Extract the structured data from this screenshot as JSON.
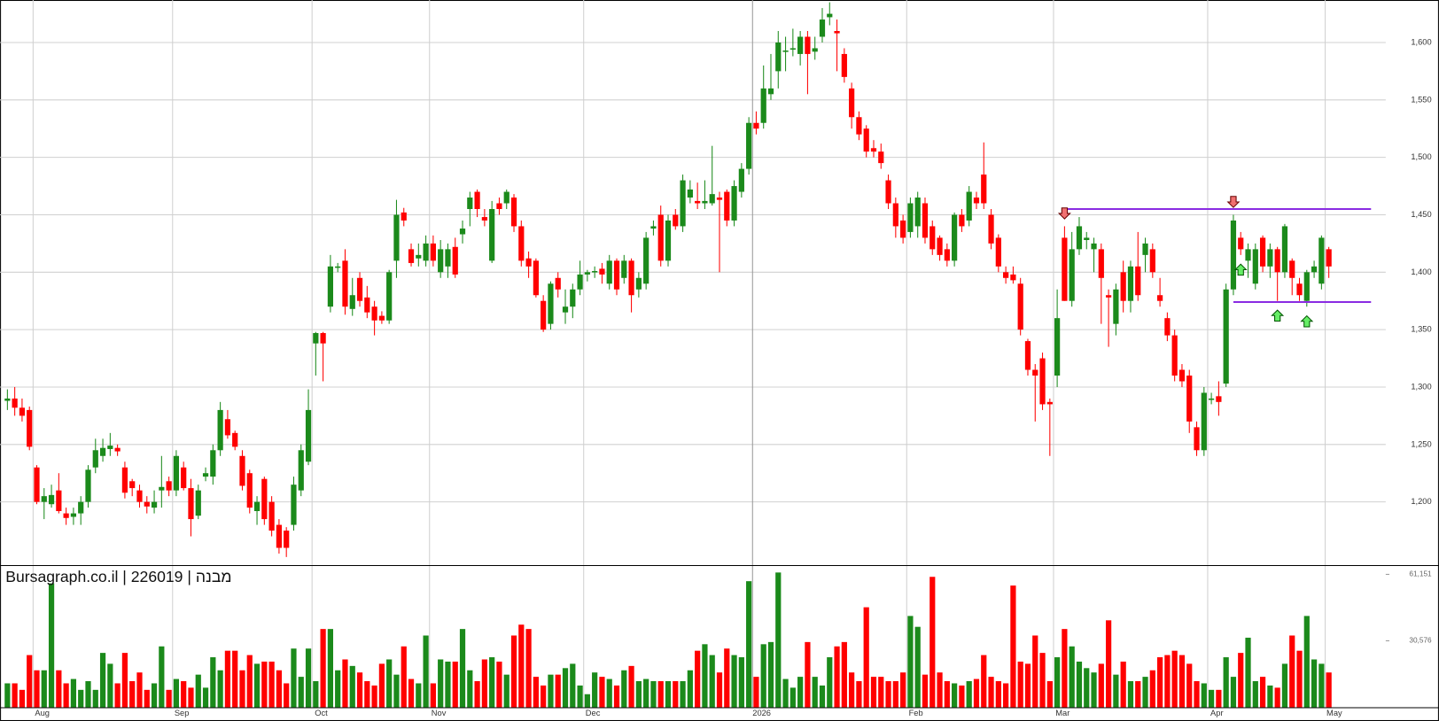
{
  "chart_data": {
    "type": "candlestick",
    "watermark": "Bursagraph.co.il | 226019 | מבנה",
    "up_color": "#1b8a1b",
    "down_color": "#ff0000",
    "level_color": "#8a2be2",
    "up_arrow_color": "#66ee66",
    "down_arrow_color": "#f07070",
    "grid": true,
    "ylim": [
      1145,
      1637
    ],
    "yticks": [
      {
        "value": 1200,
        "label": "1,200"
      },
      {
        "value": 1250,
        "label": "1,250"
      },
      {
        "value": 1300,
        "label": "1,300"
      },
      {
        "value": 1350,
        "label": "1,350"
      },
      {
        "value": 1400,
        "label": "1,400"
      },
      {
        "value": 1450,
        "label": "1,450"
      },
      {
        "value": 1500,
        "label": "1,500"
      },
      {
        "value": 1550,
        "label": "1,550"
      },
      {
        "value": 1600,
        "label": "1,600"
      }
    ],
    "y2lim": [
      0,
      65000
    ],
    "y2ticks": [
      {
        "value": 30576,
        "label": "30,576"
      },
      {
        "value": 61151,
        "label": "61,151"
      }
    ],
    "categories": [
      null,
      null,
      null,
      null,
      "Aug",
      null,
      null,
      null,
      null,
      null,
      null,
      null,
      null,
      null,
      null,
      null,
      null,
      null,
      null,
      null,
      null,
      null,
      null,
      "Sep",
      null,
      null,
      null,
      null,
      null,
      null,
      null,
      null,
      null,
      null,
      null,
      null,
      null,
      null,
      null,
      null,
      null,
      null,
      "Oct",
      null,
      null,
      null,
      null,
      null,
      null,
      null,
      null,
      null,
      null,
      null,
      null,
      null,
      null,
      null,
      "Nov",
      null,
      null,
      null,
      null,
      null,
      null,
      null,
      null,
      null,
      null,
      null,
      null,
      null,
      null,
      null,
      null,
      null,
      null,
      null,
      null,
      "Dec",
      null,
      null,
      null,
      null,
      null,
      null,
      null,
      null,
      null,
      null,
      null,
      null,
      null,
      null,
      null,
      null,
      null,
      null,
      null,
      null,
      null,
      null,
      "2026",
      null,
      null,
      null,
      null,
      null,
      null,
      null,
      null,
      null,
      null,
      null,
      null,
      null,
      null,
      null,
      null,
      null,
      null,
      null,
      null,
      "Feb",
      null,
      null,
      null,
      null,
      null,
      null,
      null,
      null,
      null,
      null,
      null,
      null,
      null,
      null,
      null,
      null,
      null,
      null,
      null,
      "Mar",
      null,
      null,
      null,
      null,
      null,
      null,
      null,
      null,
      null,
      null,
      null,
      null,
      null,
      null,
      null,
      null,
      null,
      null,
      null,
      null,
      "Apr",
      null,
      null,
      null,
      null,
      null,
      null,
      null,
      null,
      null,
      null,
      null,
      null,
      null,
      null,
      null,
      "May"
    ],
    "ohlc": [
      [
        1288,
        1298,
        1280,
        1290
      ],
      [
        1290,
        1300,
        1275,
        1282
      ],
      [
        1282,
        1290,
        1270,
        1275
      ],
      [
        1280,
        1283,
        1245,
        1248
      ],
      [
        1230,
        1232,
        1198,
        1200
      ],
      [
        1200,
        1212,
        1185,
        1205
      ],
      [
        1198,
        1215,
        1195,
        1206
      ],
      [
        1210,
        1225,
        1190,
        1192
      ],
      [
        1190,
        1195,
        1180,
        1186
      ],
      [
        1187,
        1195,
        1180,
        1190
      ],
      [
        1190,
        1205,
        1180,
        1200
      ],
      [
        1200,
        1232,
        1195,
        1228
      ],
      [
        1230,
        1255,
        1225,
        1245
      ],
      [
        1240,
        1255,
        1235,
        1247
      ],
      [
        1246,
        1260,
        1240,
        1249
      ],
      [
        1247,
        1250,
        1240,
        1244
      ],
      [
        1230,
        1235,
        1203,
        1208
      ],
      [
        1218,
        1220,
        1205,
        1212
      ],
      [
        1210,
        1215,
        1195,
        1200
      ],
      [
        1200,
        1205,
        1190,
        1196
      ],
      [
        1195,
        1210,
        1190,
        1200
      ],
      [
        1210,
        1240,
        1195,
        1213
      ],
      [
        1218,
        1222,
        1205,
        1210
      ],
      [
        1210,
        1245,
        1205,
        1240
      ],
      [
        1230,
        1235,
        1210,
        1212
      ],
      [
        1212,
        1220,
        1170,
        1185
      ],
      [
        1188,
        1215,
        1185,
        1210
      ],
      [
        1222,
        1230,
        1218,
        1225
      ],
      [
        1222,
        1250,
        1215,
        1245
      ],
      [
        1245,
        1287,
        1240,
        1280
      ],
      [
        1272,
        1280,
        1255,
        1258
      ],
      [
        1260,
        1262,
        1245,
        1248
      ],
      [
        1240,
        1245,
        1210,
        1214
      ],
      [
        1225,
        1228,
        1190,
        1195
      ],
      [
        1192,
        1205,
        1180,
        1200
      ],
      [
        1220,
        1222,
        1180,
        1185
      ],
      [
        1200,
        1205,
        1170,
        1175
      ],
      [
        1180,
        1185,
        1155,
        1160
      ],
      [
        1175,
        1178,
        1152,
        1160
      ],
      [
        1180,
        1222,
        1175,
        1215
      ],
      [
        1210,
        1250,
        1205,
        1245
      ],
      [
        1235,
        1298,
        1232,
        1280
      ],
      [
        1338,
        1348,
        1310,
        1347
      ],
      [
        1347,
        1348,
        1305,
        1338
      ],
      [
        1370,
        1415,
        1365,
        1405
      ],
      [
        1404,
        1408,
        1400,
        1405
      ],
      [
        1410,
        1420,
        1363,
        1370
      ],
      [
        1368,
        1395,
        1362,
        1380
      ],
      [
        1395,
        1400,
        1370,
        1375
      ],
      [
        1378,
        1388,
        1360,
        1365
      ],
      [
        1370,
        1375,
        1345,
        1358
      ],
      [
        1362,
        1366,
        1355,
        1358
      ],
      [
        1358,
        1402,
        1355,
        1400
      ],
      [
        1410,
        1463,
        1395,
        1450
      ],
      [
        1452,
        1456,
        1440,
        1445
      ],
      [
        1420,
        1425,
        1405,
        1408
      ],
      [
        1412,
        1425,
        1405,
        1415
      ],
      [
        1410,
        1432,
        1405,
        1425
      ],
      [
        1425,
        1432,
        1405,
        1410
      ],
      [
        1400,
        1428,
        1395,
        1420
      ],
      [
        1405,
        1425,
        1395,
        1420
      ],
      [
        1422,
        1430,
        1395,
        1398
      ],
      [
        1433,
        1445,
        1425,
        1438
      ],
      [
        1455,
        1470,
        1440,
        1465
      ],
      [
        1470,
        1472,
        1448,
        1455
      ],
      [
        1448,
        1455,
        1440,
        1445
      ],
      [
        1410,
        1462,
        1408,
        1455
      ],
      [
        1460,
        1465,
        1450,
        1455
      ],
      [
        1460,
        1472,
        1455,
        1470
      ],
      [
        1465,
        1468,
        1435,
        1440
      ],
      [
        1440,
        1445,
        1405,
        1410
      ],
      [
        1412,
        1418,
        1395,
        1405
      ],
      [
        1410,
        1412,
        1378,
        1380
      ],
      [
        1375,
        1380,
        1348,
        1350
      ],
      [
        1355,
        1392,
        1350,
        1390
      ],
      [
        1395,
        1400,
        1378,
        1385
      ],
      [
        1365,
        1385,
        1355,
        1370
      ],
      [
        1370,
        1390,
        1360,
        1385
      ],
      [
        1385,
        1410,
        1380,
        1398
      ],
      [
        1398,
        1402,
        1392,
        1400
      ],
      [
        1400,
        1405,
        1395,
        1401
      ],
      [
        1403,
        1408,
        1390,
        1398
      ],
      [
        1390,
        1415,
        1385,
        1410
      ],
      [
        1410,
        1412,
        1380,
        1385
      ],
      [
        1395,
        1415,
        1390,
        1410
      ],
      [
        1410,
        1412,
        1365,
        1380
      ],
      [
        1385,
        1400,
        1378,
        1395
      ],
      [
        1390,
        1435,
        1385,
        1430
      ],
      [
        1438,
        1445,
        1432,
        1440
      ],
      [
        1450,
        1458,
        1405,
        1410
      ],
      [
        1410,
        1450,
        1405,
        1445
      ],
      [
        1450,
        1455,
        1437,
        1440
      ],
      [
        1440,
        1485,
        1435,
        1480
      ],
      [
        1465,
        1480,
        1460,
        1472
      ],
      [
        1462,
        1478,
        1455,
        1460
      ],
      [
        1460,
        1480,
        1455,
        1462
      ],
      [
        1460,
        1510,
        1458,
        1468
      ],
      [
        1465,
        1470,
        1400,
        1463
      ],
      [
        1470,
        1472,
        1440,
        1445
      ],
      [
        1445,
        1480,
        1440,
        1475
      ],
      [
        1470,
        1495,
        1465,
        1490
      ],
      [
        1490,
        1535,
        1485,
        1530
      ],
      [
        1530,
        1540,
        1520,
        1525
      ],
      [
        1530,
        1580,
        1525,
        1560
      ],
      [
        1555,
        1590,
        1550,
        1560
      ],
      [
        1575,
        1610,
        1560,
        1600
      ],
      [
        1592,
        1605,
        1575,
        1593
      ],
      [
        1595,
        1612,
        1588,
        1595
      ],
      [
        1590,
        1610,
        1580,
        1605
      ],
      [
        1605,
        1610,
        1555,
        1590
      ],
      [
        1592,
        1605,
        1585,
        1595
      ],
      [
        1605,
        1630,
        1600,
        1620
      ],
      [
        1622,
        1635,
        1615,
        1625
      ],
      [
        1610,
        1620,
        1575,
        1608
      ],
      [
        1590,
        1595,
        1565,
        1570
      ],
      [
        1560,
        1565,
        1525,
        1535
      ],
      [
        1535,
        1540,
        1515,
        1520
      ],
      [
        1525,
        1528,
        1500,
        1505
      ],
      [
        1508,
        1515,
        1500,
        1505
      ],
      [
        1505,
        1512,
        1490,
        1495
      ],
      [
        1480,
        1485,
        1455,
        1460
      ],
      [
        1460,
        1465,
        1430,
        1440
      ],
      [
        1445,
        1450,
        1425,
        1430
      ],
      [
        1435,
        1465,
        1430,
        1460
      ],
      [
        1440,
        1470,
        1430,
        1465
      ],
      [
        1460,
        1465,
        1425,
        1430
      ],
      [
        1440,
        1445,
        1415,
        1420
      ],
      [
        1430,
        1432,
        1410,
        1415
      ],
      [
        1420,
        1425,
        1405,
        1410
      ],
      [
        1410,
        1452,
        1405,
        1450
      ],
      [
        1450,
        1455,
        1435,
        1440
      ],
      [
        1445,
        1475,
        1440,
        1470
      ],
      [
        1465,
        1470,
        1455,
        1460
      ],
      [
        1485,
        1513,
        1455,
        1460
      ],
      [
        1450,
        1455,
        1420,
        1425
      ],
      [
        1430,
        1433,
        1400,
        1405
      ],
      [
        1400,
        1405,
        1390,
        1395
      ],
      [
        1398,
        1405,
        1390,
        1393
      ],
      [
        1390,
        1395,
        1345,
        1350
      ],
      [
        1340,
        1342,
        1310,
        1315
      ],
      [
        1315,
        1320,
        1270,
        1310
      ],
      [
        1325,
        1330,
        1280,
        1285
      ],
      [
        1287,
        1290,
        1240,
        1285
      ],
      [
        1310,
        1385,
        1300,
        1360
      ],
      [
        1430,
        1440,
        1375,
        1375
      ],
      [
        1375,
        1435,
        1370,
        1420
      ],
      [
        1420,
        1448,
        1415,
        1440
      ],
      [
        1428,
        1435,
        1420,
        1430
      ],
      [
        1420,
        1430,
        1400,
        1425
      ],
      [
        1420,
        1425,
        1355,
        1395
      ],
      [
        1380,
        1385,
        1335,
        1378
      ],
      [
        1355,
        1390,
        1345,
        1385
      ],
      [
        1400,
        1410,
        1365,
        1375
      ],
      [
        1375,
        1410,
        1365,
        1405
      ],
      [
        1405,
        1435,
        1375,
        1380
      ],
      [
        1415,
        1430,
        1400,
        1425
      ],
      [
        1420,
        1425,
        1395,
        1400
      ],
      [
        1380,
        1395,
        1370,
        1375
      ],
      [
        1360,
        1365,
        1340,
        1345
      ],
      [
        1345,
        1350,
        1305,
        1310
      ],
      [
        1315,
        1320,
        1300,
        1305
      ],
      [
        1310,
        1315,
        1260,
        1270
      ],
      [
        1265,
        1270,
        1240,
        1245
      ],
      [
        1245,
        1300,
        1240,
        1295
      ],
      [
        1290,
        1295,
        1285,
        1290
      ],
      [
        1292,
        1305,
        1275,
        1287
      ],
      [
        1303,
        1390,
        1300,
        1385
      ],
      [
        1385,
        1450,
        1380,
        1445
      ],
      [
        1430,
        1435,
        1415,
        1420
      ],
      [
        1410,
        1425,
        1395,
        1420
      ],
      [
        1390,
        1425,
        1385,
        1420
      ],
      [
        1430,
        1432,
        1400,
        1405
      ],
      [
        1405,
        1425,
        1395,
        1420
      ],
      [
        1420,
        1422,
        1375,
        1400
      ],
      [
        1400,
        1442,
        1395,
        1440
      ],
      [
        1410,
        1412,
        1380,
        1395
      ],
      [
        1390,
        1395,
        1375,
        1380
      ],
      [
        1375,
        1402,
        1370,
        1400
      ],
      [
        1400,
        1410,
        1395,
        1405
      ],
      [
        1390,
        1432,
        1385,
        1430
      ],
      [
        1420,
        1422,
        1395,
        1405
      ]
    ],
    "volume": [
      11000,
      11000,
      8000,
      24000,
      17000,
      17000,
      57000,
      17000,
      11000,
      13000,
      8000,
      12000,
      8000,
      25000,
      20000,
      11000,
      25000,
      12000,
      16000,
      8000,
      11000,
      28000,
      8000,
      13000,
      12000,
      9000,
      15000,
      9000,
      23000,
      17000,
      26000,
      26000,
      17000,
      24000,
      20000,
      21000,
      21000,
      17000,
      11000,
      27000,
      14000,
      27000,
      12000,
      36000,
      36000,
      17000,
      22000,
      19000,
      16000,
      12000,
      10000,
      20000,
      22000,
      15000,
      28000,
      13000,
      11000,
      33000,
      11000,
      22000,
      21000,
      21000,
      36000,
      17000,
      12000,
      22000,
      23000,
      21000,
      15000,
      33000,
      38000,
      36000,
      14000,
      10000,
      15000,
      15000,
      18000,
      20000,
      10000,
      6000,
      16000,
      14000,
      13000,
      10000,
      17000,
      19000,
      12000,
      13000,
      12000,
      12000,
      12000,
      12000,
      12000,
      17000,
      26000,
      29000,
      24000,
      16000,
      27000,
      24000,
      23000,
      58000,
      14000,
      29000,
      30000,
      62000,
      13000,
      9000,
      14000,
      30000,
      14000,
      10000,
      23000,
      28000,
      30000,
      16000,
      12000,
      46000,
      14000,
      14000,
      12000,
      12000,
      16000,
      42000,
      37000,
      15000,
      60000,
      16000,
      12000,
      11000,
      10000,
      12000,
      13000,
      24000,
      14000,
      12000,
      11000,
      56000,
      21000,
      20000,
      33000,
      25000,
      12000,
      23000,
      36000,
      28000,
      21000,
      18000,
      16000,
      20000,
      40000,
      15000,
      21000,
      12000,
      12000,
      14000,
      17000,
      23000,
      24000,
      26000,
      24000,
      20000,
      12000,
      11000,
      8000,
      8000,
      23000,
      14000,
      25000,
      32000,
      12000,
      14000,
      10000,
      9000,
      20000,
      33000,
      26000,
      42000,
      22000,
      20000,
      16000
    ],
    "levels": [
      {
        "value": 1455,
        "start": 144
      },
      {
        "value": 1374,
        "start": 167
      }
    ],
    "down_arrows": [
      144,
      167
    ],
    "up_arrows": [
      168,
      173,
      177
    ]
  }
}
